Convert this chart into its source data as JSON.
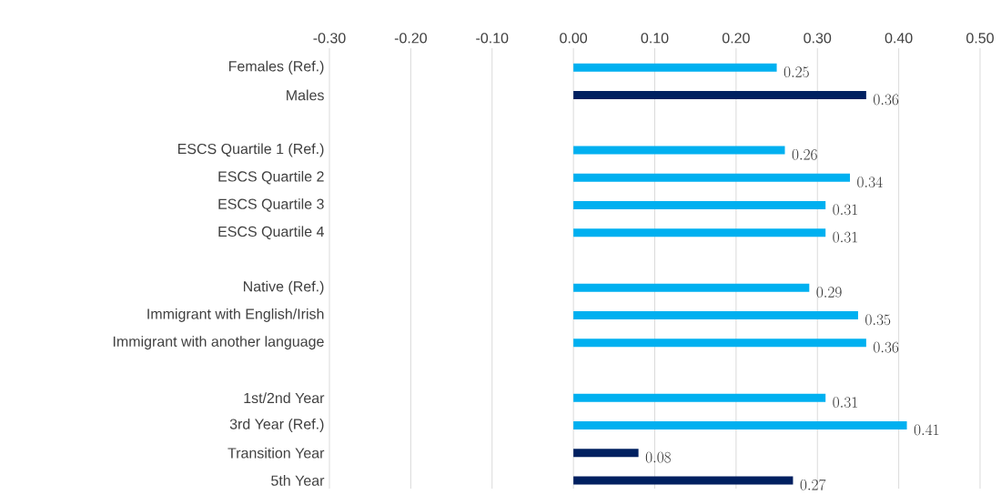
{
  "chart_data": {
    "type": "bar",
    "orientation": "horizontal",
    "categories": [
      "Females (Ref.)",
      "Males",
      null,
      "ESCS Quartile 1 (Ref.)",
      "ESCS Quartile 2",
      "ESCS Quartile 3",
      "ESCS Quartile 4",
      null,
      "Native (Ref.)",
      "Immigrant with English/Irish",
      "Immigrant with another language",
      null,
      "1st/2nd Year",
      "3rd Year (Ref.)",
      "Transition Year",
      "5th Year"
    ],
    "values": [
      0.25,
      0.36,
      null,
      0.26,
      0.34,
      0.31,
      0.31,
      null,
      0.29,
      0.35,
      0.36,
      null,
      0.31,
      0.41,
      0.08,
      0.27
    ],
    "colors": [
      "#00b0f0",
      "#002060",
      "#00b0f0",
      "#00b0f0",
      "#00b0f0",
      "#00b0f0",
      "#00b0f0",
      "#00b0f0",
      "#00b0f0",
      "#00b0f0",
      "#00b0f0",
      "#00b0f0",
      "#00b0f0",
      "#00b0f0",
      "#002060",
      "#002060"
    ],
    "xlim": [
      -0.3,
      0.5
    ],
    "xticks": [
      {
        "value": -0.3,
        "label": "-0.30"
      },
      {
        "value": -0.2,
        "label": "-0.20"
      },
      {
        "value": -0.1,
        "label": "-0.10"
      },
      {
        "value": 0,
        "label": "0.00"
      },
      {
        "value": 0.1,
        "label": "0.10"
      },
      {
        "value": 0.2,
        "label": "0.20"
      },
      {
        "value": 0.3,
        "label": "0.30"
      },
      {
        "value": 0.4,
        "label": "0.40"
      },
      {
        "value": 0.5,
        "label": "0.50"
      }
    ],
    "grid": true,
    "data_labels": true
  }
}
